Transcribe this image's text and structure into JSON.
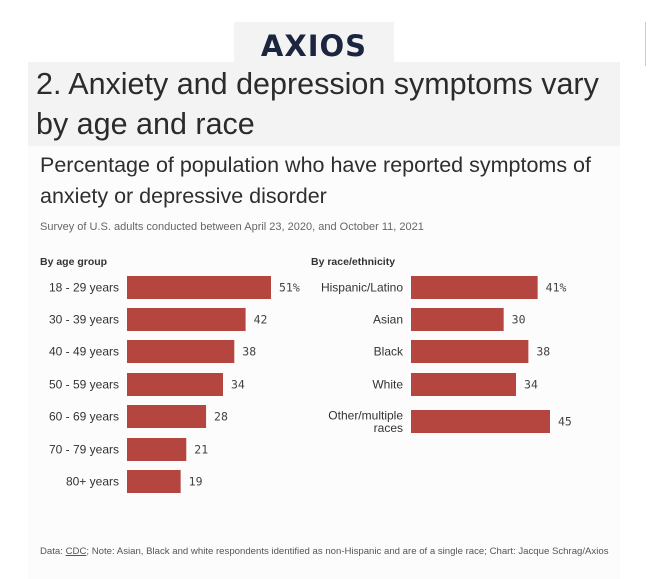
{
  "brand": {
    "logo": "AXIOS"
  },
  "heading": "2. Anxiety and depression symptoms vary by age and race",
  "chart_data": [
    {
      "type": "bar",
      "orientation": "horizontal",
      "panel_title": "By age group",
      "title": "Percentage of population who have reported symptoms of anxiety or depressive disorder",
      "subtitle": "Survey of U.S. adults conducted between April 23, 2020, and October 11, 2021",
      "categories": [
        "18 - 29 years",
        "30 - 39 years",
        "40 - 49 years",
        "50 - 59 years",
        "60 - 69 years",
        "70 - 79 years",
        "80+ years"
      ],
      "values": [
        51,
        42,
        38,
        34,
        28,
        21,
        19
      ],
      "value_labels": [
        "51%",
        "42",
        "38",
        "34",
        "28",
        "21",
        "19"
      ],
      "unit": "%",
      "xlim": [
        0,
        51
      ],
      "grid": false,
      "color": "#b5453f"
    },
    {
      "type": "bar",
      "orientation": "horizontal",
      "panel_title": "By race/ethnicity",
      "categories": [
        [
          "Hispanic/Latino"
        ],
        [
          "Asian"
        ],
        [
          "Black"
        ],
        [
          "White"
        ],
        [
          "Other/multiple",
          "races"
        ]
      ],
      "values": [
        41,
        30,
        38,
        34,
        45
      ],
      "value_labels": [
        "41%",
        "30",
        "38",
        "34",
        "45"
      ],
      "unit": "%",
      "xlim": [
        0,
        45
      ],
      "grid": false,
      "color": "#b5453f"
    }
  ],
  "footer": {
    "data_label": "Data:",
    "source": "CDC",
    "note": "; Note: Asian, Black and white respondents identified as non-Hispanic and are of a single race; Chart: Jacque Schrag/Axios"
  },
  "colors": {
    "bar": "#b5453f",
    "card": "#fcfcfc",
    "heading_bg": "#f3f3f3",
    "logo": "#1b2540"
  }
}
